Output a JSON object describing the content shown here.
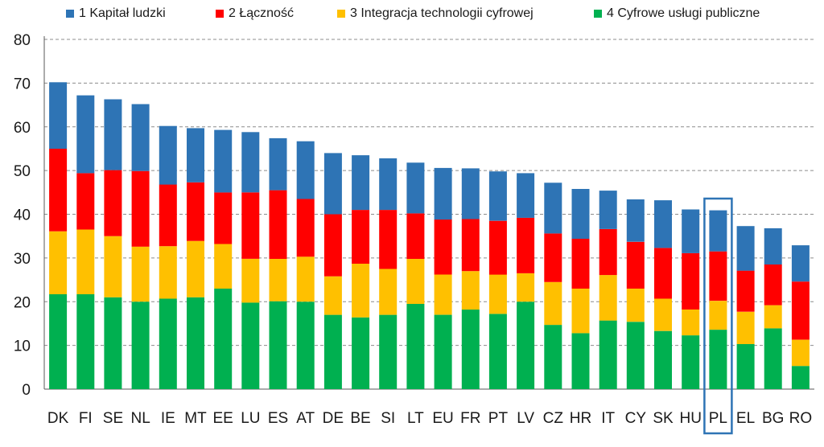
{
  "chart_data": {
    "type": "bar",
    "stacked": true,
    "categories": [
      "DK",
      "FI",
      "SE",
      "NL",
      "IE",
      "MT",
      "EE",
      "LU",
      "ES",
      "AT",
      "DE",
      "BE",
      "SI",
      "LT",
      "EU",
      "FR",
      "PT",
      "LV",
      "CZ",
      "HR",
      "IT",
      "CY",
      "SK",
      "HU",
      "PL",
      "EL",
      "BG",
      "RO"
    ],
    "series": [
      {
        "name": "4 Cyfrowe usługi publiczne",
        "color": "#00b050",
        "values": [
          21.7,
          21.7,
          21.0,
          20.0,
          20.7,
          21.0,
          23.0,
          19.8,
          20.1,
          20.0,
          17.0,
          16.4,
          17.0,
          19.5,
          17.0,
          18.2,
          17.2,
          20.0,
          14.7,
          12.8,
          15.7,
          15.4,
          13.3,
          12.3,
          13.6,
          10.3,
          13.9,
          5.3
        ]
      },
      {
        "name": "3 Integracja technologii cyfrowej",
        "color": "#ffc000",
        "values": [
          14.4,
          14.8,
          14.0,
          12.6,
          12.0,
          12.9,
          10.2,
          10.0,
          9.7,
          10.3,
          8.8,
          12.3,
          10.5,
          10.3,
          9.2,
          8.8,
          9.0,
          6.5,
          9.8,
          10.2,
          10.4,
          7.6,
          7.4,
          5.9,
          6.6,
          7.4,
          5.3,
          6.0
        ]
      },
      {
        "name": "2 Łączność",
        "color": "#ff0000",
        "values": [
          18.9,
          12.9,
          15.1,
          17.3,
          14.1,
          13.4,
          11.8,
          15.2,
          15.7,
          13.2,
          14.2,
          12.3,
          13.5,
          10.4,
          12.6,
          11.9,
          12.3,
          12.7,
          11.1,
          11.4,
          10.5,
          10.7,
          11.6,
          12.9,
          11.3,
          9.4,
          9.3,
          13.3
        ]
      },
      {
        "name": "1 Kapitał ludzki",
        "color": "#2e74b5",
        "values": [
          15.2,
          17.8,
          16.2,
          15.3,
          13.4,
          12.4,
          14.3,
          13.8,
          11.9,
          13.2,
          14.0,
          12.5,
          11.8,
          11.6,
          11.8,
          11.6,
          11.3,
          10.2,
          11.6,
          11.4,
          8.8,
          9.7,
          10.9,
          10.0,
          9.4,
          10.2,
          8.3,
          8.3
        ]
      }
    ],
    "ylim": [
      0,
      80
    ],
    "yticks": [
      "0",
      "10",
      "20",
      "30",
      "40",
      "50",
      "60",
      "70",
      "80"
    ],
    "grid": "horizontal-dashed",
    "legend_position": "top",
    "highlight_category": "PL",
    "highlight_color": "#2e74b5"
  }
}
